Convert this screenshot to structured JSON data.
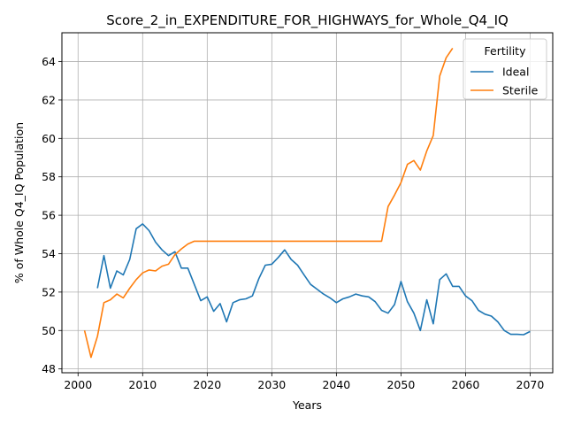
{
  "chart_data": {
    "type": "line",
    "title": "Score_2_in_EXPENDITURE_FOR_HIGHWAYS_for_Whole_Q4_IQ",
    "xlabel": "Years",
    "ylabel": "% of Whole Q4_IQ Population",
    "xlim": [
      1997.5,
      2073.5
    ],
    "ylim": [
      47.8,
      65.5
    ],
    "xticks": [
      2000,
      2010,
      2020,
      2030,
      2040,
      2050,
      2060,
      2070
    ],
    "yticks": [
      48,
      50,
      52,
      54,
      56,
      58,
      60,
      62,
      64
    ],
    "grid": true,
    "legend": {
      "title": "Fertility",
      "placement": "top-right"
    },
    "series": [
      {
        "name": "Ideal",
        "color": "#1f77b4",
        "x": [
          2003,
          2004,
          2005,
          2006,
          2007,
          2008,
          2009,
          2010,
          2011,
          2012,
          2013,
          2014,
          2015,
          2016,
          2017,
          2018,
          2019,
          2020,
          2021,
          2022,
          2023,
          2024,
          2025,
          2026,
          2027,
          2028,
          2029,
          2030,
          2031,
          2032,
          2033,
          2034,
          2035,
          2036,
          2037,
          2038,
          2039,
          2040,
          2041,
          2042,
          2043,
          2044,
          2045,
          2046,
          2047,
          2048,
          2049,
          2050,
          2051,
          2052,
          2053,
          2054,
          2055,
          2056,
          2057,
          2058,
          2059,
          2060,
          2061,
          2062,
          2063,
          2064,
          2065,
          2066,
          2067,
          2068,
          2069,
          2070
        ],
        "values": [
          52.2,
          53.9,
          52.2,
          53.1,
          52.9,
          53.7,
          55.3,
          55.55,
          55.2,
          54.6,
          54.2,
          53.9,
          54.1,
          53.25,
          53.25,
          52.4,
          51.55,
          51.75,
          51.0,
          51.4,
          50.45,
          51.45,
          51.6,
          51.65,
          51.8,
          52.7,
          53.4,
          53.45,
          53.8,
          54.2,
          53.7,
          53.4,
          52.9,
          52.4,
          52.15,
          51.9,
          51.7,
          51.45,
          51.65,
          51.75,
          51.9,
          51.8,
          51.75,
          51.5,
          51.05,
          50.9,
          51.35,
          52.55,
          51.5,
          50.9,
          50.0,
          51.6,
          50.35,
          52.65,
          52.95,
          52.3,
          52.3,
          51.8,
          51.55,
          51.05,
          50.85,
          50.75,
          50.45,
          50.0,
          49.8,
          49.8,
          49.78,
          49.95
        ]
      },
      {
        "name": "Sterile",
        "color": "#ff7f0e",
        "x": [
          2001,
          2002,
          2003,
          2004,
          2005,
          2006,
          2007,
          2008,
          2009,
          2010,
          2011,
          2012,
          2013,
          2014,
          2015,
          2016,
          2017,
          2018,
          2019,
          2020,
          2021,
          2022,
          2023,
          2024,
          2025,
          2026,
          2027,
          2028,
          2029,
          2030,
          2031,
          2032,
          2033,
          2034,
          2035,
          2036,
          2037,
          2038,
          2039,
          2040,
          2041,
          2042,
          2043,
          2044,
          2045,
          2046,
          2047,
          2048,
          2049,
          2050,
          2051,
          2052,
          2053,
          2054,
          2055,
          2056,
          2057,
          2058
        ],
        "values": [
          50.0,
          48.6,
          49.7,
          51.45,
          51.6,
          51.9,
          51.7,
          52.2,
          52.65,
          53.0,
          53.15,
          53.1,
          53.35,
          53.45,
          53.95,
          54.25,
          54.5,
          54.65,
          54.65,
          54.65,
          54.65,
          54.65,
          54.65,
          54.65,
          54.65,
          54.65,
          54.65,
          54.65,
          54.65,
          54.65,
          54.65,
          54.65,
          54.65,
          54.65,
          54.65,
          54.65,
          54.65,
          54.65,
          54.65,
          54.65,
          54.65,
          54.65,
          54.65,
          54.65,
          54.65,
          54.65,
          54.65,
          56.45,
          57.05,
          57.7,
          58.65,
          58.85,
          58.35,
          59.35,
          60.15,
          63.25,
          64.2,
          64.7
        ]
      }
    ]
  }
}
